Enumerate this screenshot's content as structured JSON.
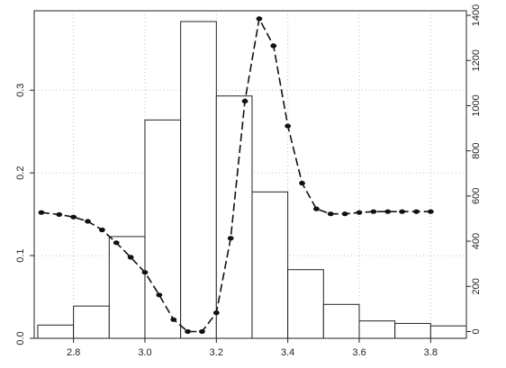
{
  "chart_data": {
    "type": "bar",
    "title": "",
    "xlabel": "",
    "ylabel": "",
    "y2label": "",
    "grid": true,
    "x_ticks": [
      "2.8",
      "3.0",
      "3.2",
      "3.4",
      "3.6",
      "3.8"
    ],
    "y_left_ticks": [
      "0.0",
      "0.1",
      "0.2",
      "0.3"
    ],
    "y_right_ticks": [
      "0",
      "200",
      "400",
      "600",
      "800",
      "1000",
      "1200",
      "1400"
    ],
    "xlim": [
      2.69,
      3.9
    ],
    "ylim_left": [
      0.0,
      0.396
    ],
    "ylim_right": [
      -30,
      1420
    ],
    "series": [
      {
        "type": "histogram",
        "axis": "left",
        "bins": [
          {
            "x0": 2.7,
            "x1": 2.8,
            "density": 0.016
          },
          {
            "x0": 2.8,
            "x1": 2.9,
            "density": 0.039
          },
          {
            "x0": 2.9,
            "x1": 3.0,
            "density": 0.123
          },
          {
            "x0": 3.0,
            "x1": 3.1,
            "density": 0.264
          },
          {
            "x0": 3.1,
            "x1": 3.2,
            "density": 0.383
          },
          {
            "x0": 3.2,
            "x1": 3.3,
            "density": 0.293
          },
          {
            "x0": 3.3,
            "x1": 3.4,
            "density": 0.177
          },
          {
            "x0": 3.4,
            "x1": 3.5,
            "density": 0.083
          },
          {
            "x0": 3.5,
            "x1": 3.6,
            "density": 0.041
          },
          {
            "x0": 3.6,
            "x1": 3.7,
            "density": 0.021
          },
          {
            "x0": 3.7,
            "x1": 3.8,
            "density": 0.018
          },
          {
            "x0": 3.8,
            "x1": 3.9,
            "density": 0.015
          }
        ]
      },
      {
        "type": "line",
        "axis": "right",
        "x": [
          2.71,
          2.76,
          2.8,
          2.84,
          2.88,
          2.92,
          2.96,
          3.0,
          3.04,
          3.08,
          3.12,
          3.16,
          3.2,
          3.24,
          3.28,
          3.32,
          3.36,
          3.4,
          3.44,
          3.48,
          3.52,
          3.56,
          3.6,
          3.64,
          3.68,
          3.72,
          3.76,
          3.8
        ],
        "y": [
          527,
          518,
          507,
          488,
          450,
          393,
          329,
          262,
          162,
          53,
          0,
          0,
          83,
          413,
          1020,
          1385,
          1265,
          910,
          657,
          543,
          521,
          521,
          527,
          531,
          531,
          531,
          531,
          531
        ]
      }
    ]
  }
}
